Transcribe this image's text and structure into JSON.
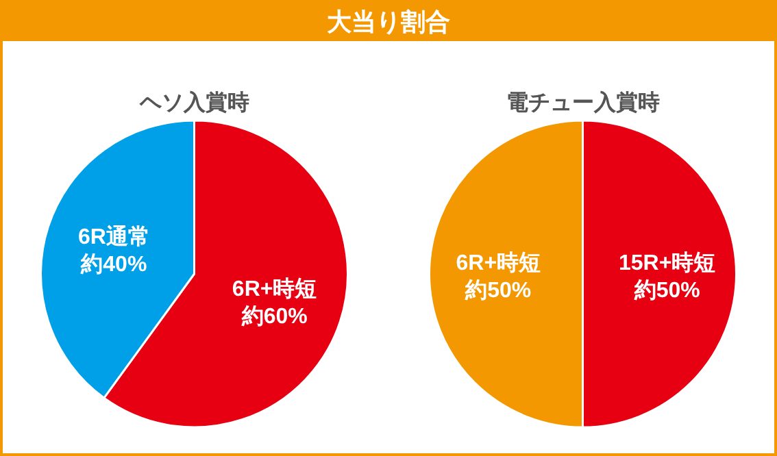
{
  "chart_data": [
    {
      "type": "other",
      "title": "大当り割合"
    },
    {
      "type": "pie",
      "title": "ヘソ入賞時",
      "categories": [
        "6R+時短",
        "6R通常"
      ],
      "values": [
        60,
        40
      ],
      "colors": [
        "#e60012",
        "#00a0e9"
      ],
      "value_labels": [
        "約60%",
        "約40%"
      ]
    },
    {
      "type": "pie",
      "title": "電チュー入賞時",
      "categories": [
        "15R+時短",
        "6R+時短"
      ],
      "values": [
        50,
        50
      ],
      "colors": [
        "#e60012",
        "#f39800"
      ],
      "value_labels": [
        "約50%",
        "約50%"
      ]
    }
  ]
}
